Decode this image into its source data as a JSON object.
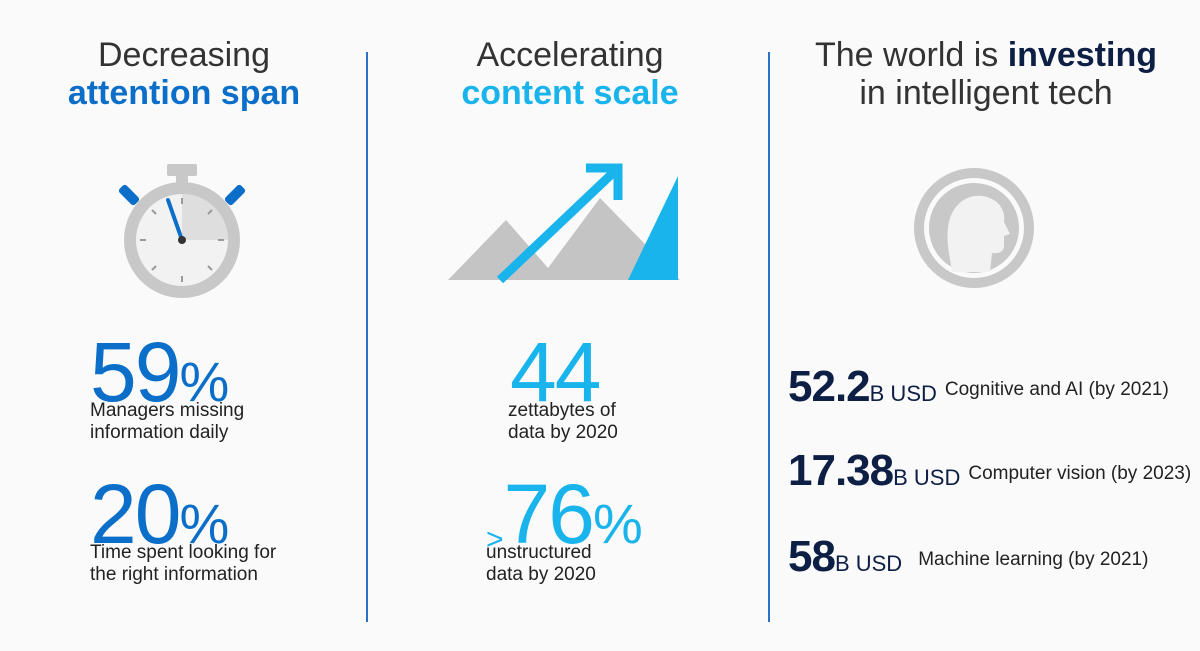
{
  "colors": {
    "blue_dark": "#0b6fc9",
    "blue_light": "#1ab4ec",
    "navy": "#0d1f44",
    "grey_icon": "#c8c8c8"
  },
  "column1": {
    "title_line1": "Decreasing",
    "title_line2": "attention span",
    "icon": "stopwatch-icon",
    "stat1": {
      "value": "59",
      "unit": "%",
      "caption_line1": "Managers missing",
      "caption_line2": "information daily"
    },
    "stat2": {
      "value": "20",
      "unit": "%",
      "caption_line1": "Time spent looking for",
      "caption_line2": "the right information"
    }
  },
  "column2": {
    "title_line1": "Accelerating",
    "title_line2": "content scale",
    "icon": "growth-mountains-icon",
    "stat1": {
      "value": "44",
      "caption_line1": "zettabytes of",
      "caption_line2": "data by 2020"
    },
    "stat2": {
      "prefix": ">",
      "value": "76",
      "unit": "%",
      "caption_line1": "unstructured",
      "caption_line2": "data by 2020"
    }
  },
  "column3": {
    "title_part1": "The world is ",
    "title_bold": "investing",
    "title_line2": "in intelligent tech",
    "icon": "human-head-profile-icon",
    "stats": [
      {
        "value": "52.2",
        "unit": "B USD",
        "label": "Cognitive and AI (by 2021)"
      },
      {
        "value": "17.38",
        "unit": "B USD",
        "label": "Computer vision (by 2023)"
      },
      {
        "value": "58",
        "unit": "B USD",
        "label": "Machine learning (by 2021)"
      }
    ]
  }
}
